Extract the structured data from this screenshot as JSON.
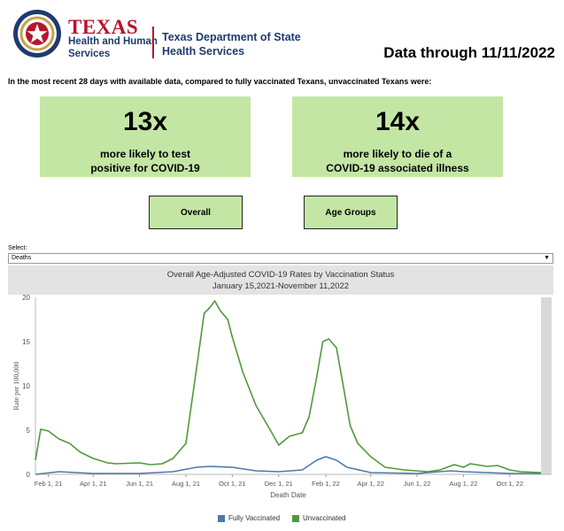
{
  "header": {
    "logo_texas": "TEXAS",
    "logo_hhs_line1": "Health and Human",
    "logo_hhs_line2": "Services",
    "dshs_line1": "Texas Department of State",
    "dshs_line2": "Health Services",
    "data_through": "Data through 11/11/2022"
  },
  "intro": "In the most recent 28 days with available data, compared to fully vaccinated Texans, unvaccinated Texans were:",
  "stats": [
    {
      "value": "13x",
      "line1": "more likely to test",
      "line2": "positive for COVID-19"
    },
    {
      "value": "14x",
      "line1": "more likely to die of a",
      "line2": "COVID-19 associated illness"
    }
  ],
  "buttons": {
    "overall": "Overall",
    "age_groups": "Age Groups"
  },
  "select": {
    "label": "Select:",
    "value": "Deaths"
  },
  "colors": {
    "vaccinated": "#4e79a7",
    "unvaccinated": "#4f9a3c",
    "stat_bg": "#c3e6a4"
  },
  "chart_data": {
    "type": "line",
    "title": "Overall Age-Adjusted COVID-19 Rates by Vaccination Status",
    "subtitle": "January 15,2021-November 11,2022",
    "xlabel": "Death Date",
    "ylabel": "Rate per 100,000",
    "ylim": [
      0,
      20
    ],
    "yticks": [
      "0",
      "5",
      "10",
      "15",
      "20"
    ],
    "xticks": [
      "Feb 1, 21",
      "Apr 1, 21",
      "Jun 1, 21",
      "Aug 1, 21",
      "Oct 1, 21",
      "Dec 1, 21",
      "Feb 1, 22",
      "Apr 1, 22",
      "Jun 1, 22",
      "Aug 1, 22",
      "Oct 1, 22"
    ],
    "x_start": "2021-01-15",
    "x_end": "2022-11-11",
    "series": [
      {
        "name": "Fully Vaccinated",
        "points": [
          [
            "2021-01-15",
            0.0
          ],
          [
            "2021-02-15",
            0.3
          ],
          [
            "2021-04-01",
            0.1
          ],
          [
            "2021-06-01",
            0.1
          ],
          [
            "2021-07-15",
            0.3
          ],
          [
            "2021-08-15",
            0.8
          ],
          [
            "2021-09-01",
            0.9
          ],
          [
            "2021-10-01",
            0.8
          ],
          [
            "2021-11-01",
            0.4
          ],
          [
            "2021-12-01",
            0.3
          ],
          [
            "2022-01-01",
            0.5
          ],
          [
            "2022-01-20",
            1.6
          ],
          [
            "2022-02-01",
            2.0
          ],
          [
            "2022-02-15",
            1.6
          ],
          [
            "2022-03-01",
            0.8
          ],
          [
            "2022-04-01",
            0.2
          ],
          [
            "2022-06-01",
            0.1
          ],
          [
            "2022-07-15",
            0.4
          ],
          [
            "2022-08-01",
            0.3
          ],
          [
            "2022-09-01",
            0.2
          ],
          [
            "2022-10-01",
            0.1
          ],
          [
            "2022-11-11",
            0.1
          ]
        ]
      },
      {
        "name": "Unvaccinated",
        "points": [
          [
            "2021-01-15",
            1.6
          ],
          [
            "2021-01-22",
            5.1
          ],
          [
            "2021-02-01",
            4.9
          ],
          [
            "2021-02-15",
            4.0
          ],
          [
            "2021-03-01",
            3.5
          ],
          [
            "2021-03-15",
            2.5
          ],
          [
            "2021-04-01",
            1.8
          ],
          [
            "2021-04-20",
            1.3
          ],
          [
            "2021-05-01",
            1.2
          ],
          [
            "2021-06-01",
            1.3
          ],
          [
            "2021-06-15",
            1.1
          ],
          [
            "2021-07-01",
            1.2
          ],
          [
            "2021-07-15",
            1.8
          ],
          [
            "2021-08-01",
            3.5
          ],
          [
            "2021-08-15",
            12.0
          ],
          [
            "2021-08-25",
            18.2
          ],
          [
            "2021-09-01",
            18.8
          ],
          [
            "2021-09-08",
            19.6
          ],
          [
            "2021-09-15",
            18.5
          ],
          [
            "2021-09-25",
            17.5
          ],
          [
            "2021-10-01",
            15.5
          ],
          [
            "2021-10-15",
            11.5
          ],
          [
            "2021-11-01",
            7.8
          ],
          [
            "2021-11-20",
            5.0
          ],
          [
            "2021-12-01",
            3.3
          ],
          [
            "2021-12-15",
            4.3
          ],
          [
            "2022-01-01",
            4.7
          ],
          [
            "2022-01-10",
            6.5
          ],
          [
            "2022-01-20",
            11.0
          ],
          [
            "2022-01-28",
            15.0
          ],
          [
            "2022-02-05",
            15.3
          ],
          [
            "2022-02-15",
            14.3
          ],
          [
            "2022-02-25",
            9.5
          ],
          [
            "2022-03-05",
            5.5
          ],
          [
            "2022-03-15",
            3.5
          ],
          [
            "2022-04-01",
            2.0
          ],
          [
            "2022-04-20",
            0.8
          ],
          [
            "2022-05-15",
            0.5
          ],
          [
            "2022-06-15",
            0.3
          ],
          [
            "2022-07-01",
            0.5
          ],
          [
            "2022-07-20",
            1.1
          ],
          [
            "2022-08-01",
            0.8
          ],
          [
            "2022-08-10",
            1.2
          ],
          [
            "2022-09-01",
            0.9
          ],
          [
            "2022-09-15",
            1.0
          ],
          [
            "2022-10-01",
            0.5
          ],
          [
            "2022-10-15",
            0.3
          ],
          [
            "2022-11-11",
            0.2
          ]
        ]
      }
    ],
    "legend": [
      "Fully Vaccinated",
      "Unvaccinated"
    ]
  }
}
